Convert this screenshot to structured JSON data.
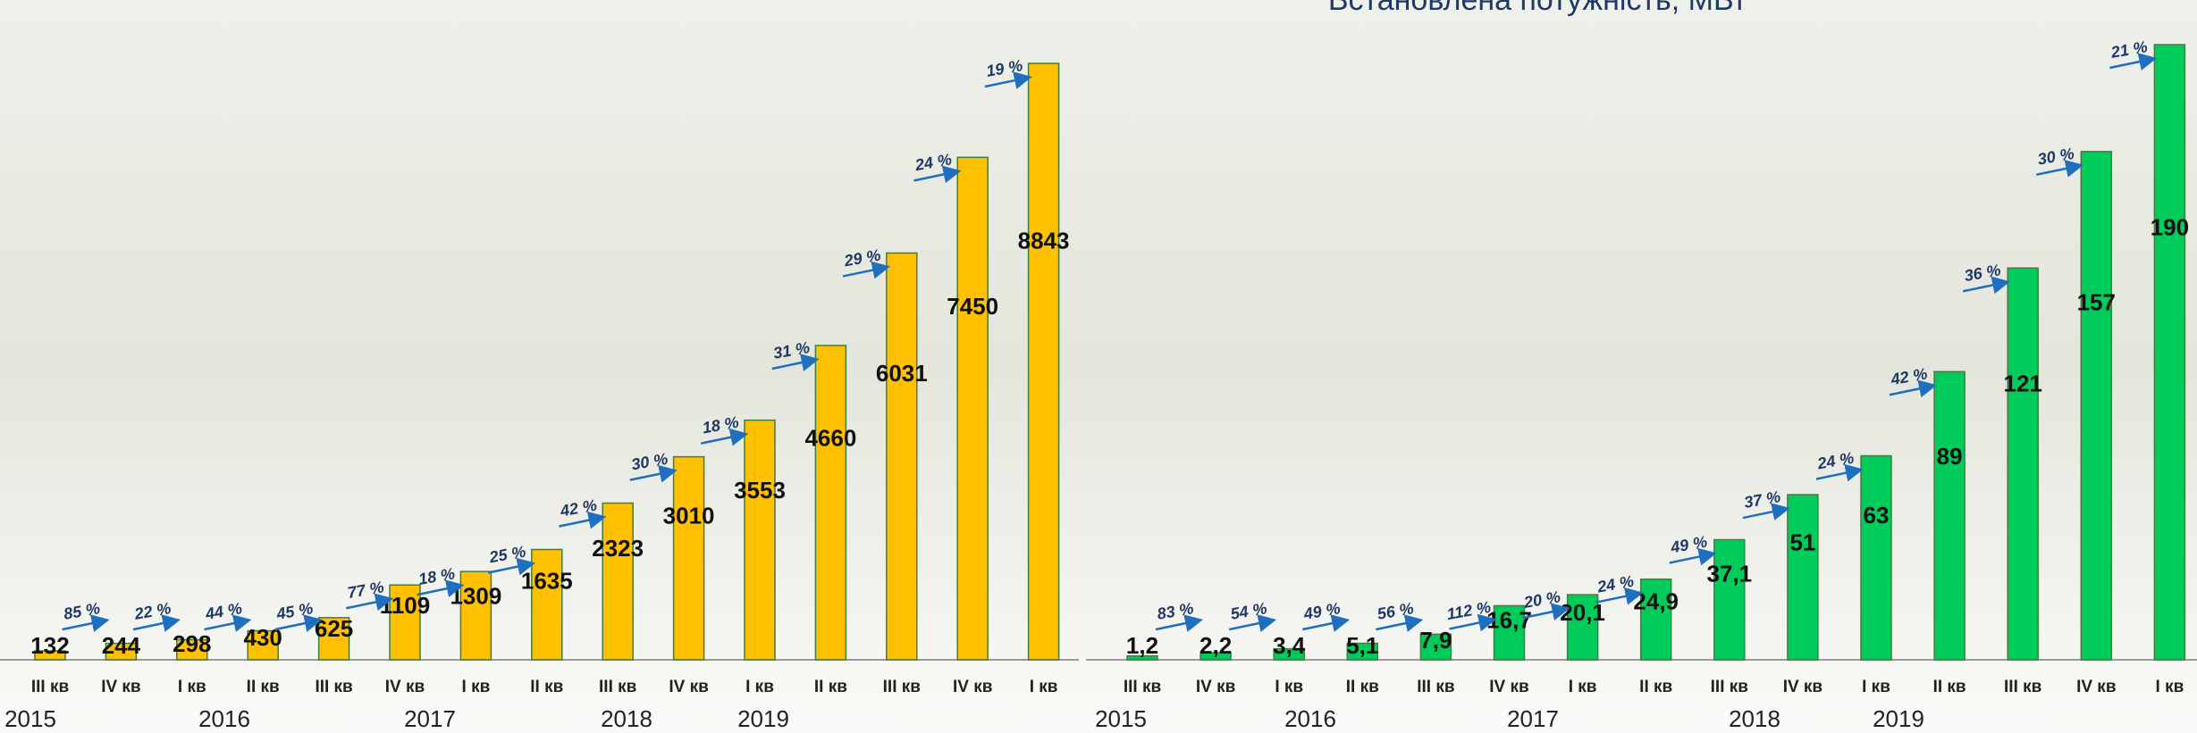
{
  "chart_data": [
    {
      "type": "bar",
      "categories": [
        "III кв",
        "IV кв",
        "I кв",
        "II кв",
        "III кв",
        "IV кв",
        "I кв",
        "II кв",
        "III кв",
        "IV кв",
        "I кв",
        "II кв",
        "III кв",
        "IV кв",
        "I кв"
      ],
      "x_groups": [
        "2015",
        "2016",
        "2017",
        "2018",
        "2019"
      ],
      "values": [
        132,
        244,
        298,
        430,
        625,
        1109,
        1309,
        1635,
        2323,
        3010,
        3553,
        4660,
        6031,
        7450,
        8843
      ],
      "color": "#ffc000",
      "growth": {
        "values": [
          85,
          22,
          44,
          45,
          77,
          18,
          25,
          42,
          30,
          18,
          31,
          29,
          24,
          19
        ],
        "value_labels": [
          "85 %",
          "22 %",
          "44 %",
          "45 %",
          "77 %",
          "18 %",
          "25 %",
          "42 %",
          "30 %",
          "18 %",
          "31 %",
          "29 %",
          "24 %",
          "19 %"
        ]
      }
    },
    {
      "type": "bar",
      "title": "Встановлена потужність, МВт",
      "categories": [
        "III кв",
        "IV кв",
        "I кв",
        "II кв",
        "III кв",
        "IV кв",
        "I кв",
        "II кв",
        "III кв",
        "IV кв",
        "I кв",
        "II кв",
        "III кв",
        "IV кв",
        "I кв"
      ],
      "x_groups": [
        "2015",
        "2016",
        "2017",
        "2018",
        "2019"
      ],
      "values": [
        1.2,
        2.2,
        3.4,
        5.1,
        7.9,
        16.7,
        20.1,
        24.9,
        37.1,
        51,
        63,
        89,
        121,
        157,
        190
      ],
      "value_labels": [
        "1,2",
        "2,2",
        "3,4",
        "5,1",
        "7,9",
        "16,7",
        "20,1",
        "24,9",
        "37,1",
        "51",
        "63",
        "89",
        "121",
        "157",
        "190"
      ],
      "color": "#00cc5c",
      "growth": {
        "values": [
          83,
          54,
          49,
          56,
          112,
          20,
          24,
          49,
          37,
          24,
          42,
          36,
          30,
          21
        ],
        "value_labels": [
          "83 %",
          "54 %",
          "49 %",
          "56 %",
          "112 %",
          "20 %",
          "24 %",
          "49 %",
          "37 %",
          "24 %",
          "42 %",
          "36 %",
          "30 %",
          "21 %"
        ]
      }
    }
  ]
}
